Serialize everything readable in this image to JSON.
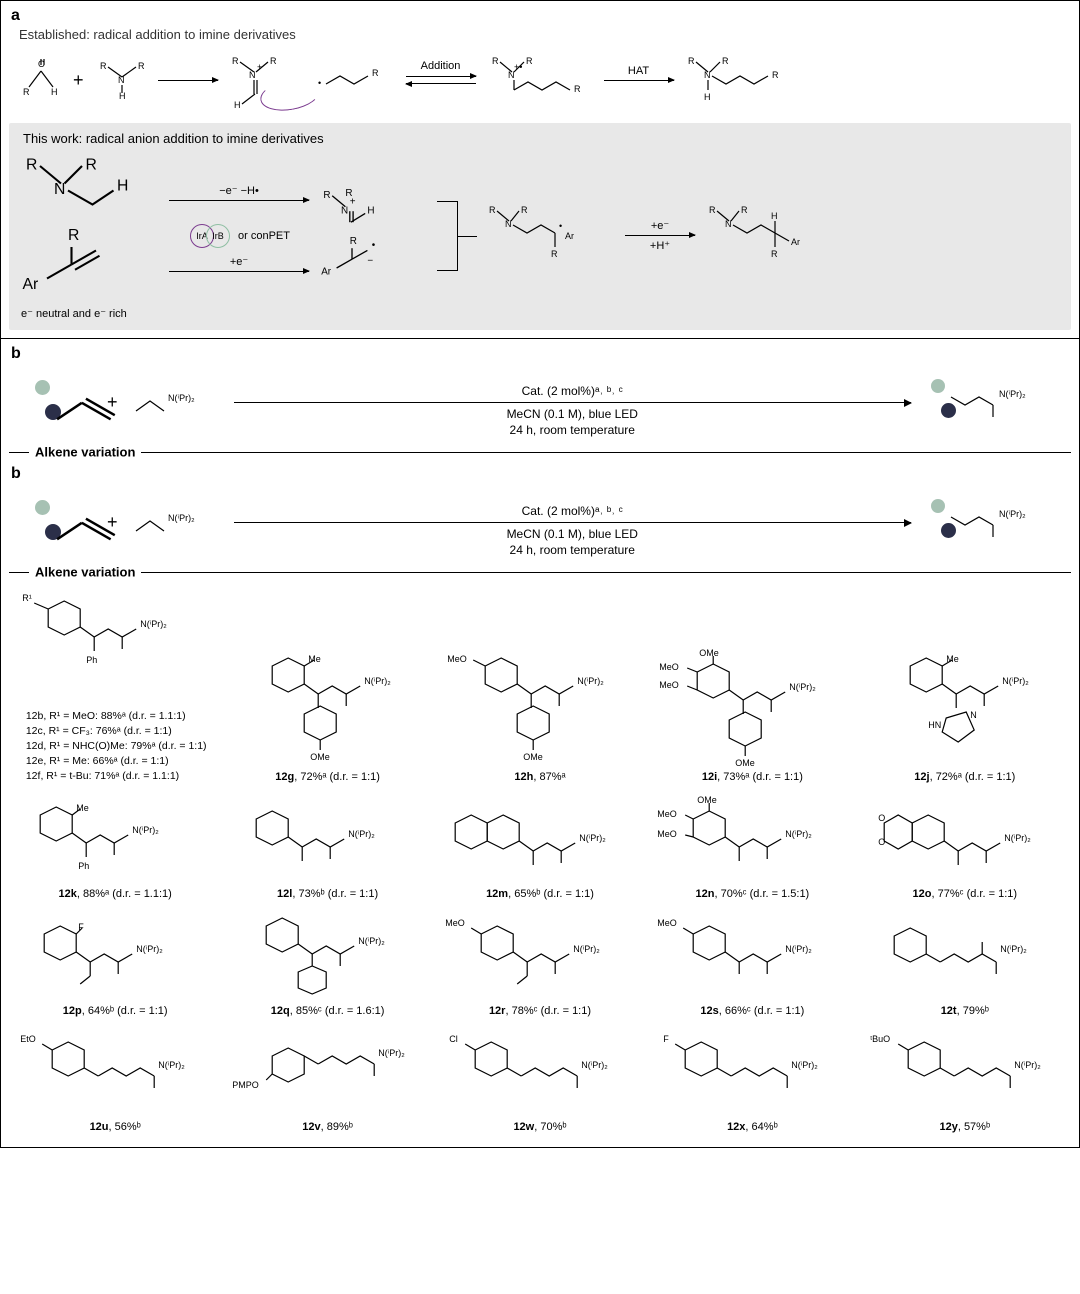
{
  "panelA": {
    "label": "a",
    "established_title": "Established: radical addition to imine derivatives",
    "thiswork_title": "This work: radical anion addition to imine derivatives",
    "addition_label": "Addition",
    "hat_label": "HAT",
    "venn": {
      "left_label": "IrA",
      "right_label": "IrB",
      "left_color": "#7b3b8f",
      "right_color": "#8fbfa3",
      "or_text": "or conPET"
    },
    "top_conditions": "−e⁻   −H•",
    "bot_conditions": "+e⁻",
    "footnote": "e⁻ neutral and e⁻ rich",
    "final_over": "+e⁻",
    "final_under": "+H⁺",
    "mol_labels": {
      "aldehyde": "O",
      "aldehyde_H": "H",
      "amine_R": "R",
      "aminyl_H": "H",
      "iminium_Rplus": "R",
      "radical_R": "R",
      "Ar": "Ar"
    }
  },
  "panelB": {
    "label": "b",
    "cat_line": "Cat. (2 mol%)ᵃ˒ ᵇ˒ ᶜ",
    "cond_line1": "MeCN (0.1 M), blue LED",
    "cond_line2": "24 h, room temperature",
    "amine_label": "N(ⁱPr)₂",
    "dot_colors": {
      "top": "#a6c1b3",
      "bot": "#2b2f49"
    },
    "section_title": "Alkene variation"
  },
  "entries": {
    "col1": {
      "lines": [
        {
          "id": "12b",
          "text": ", R¹ = MeO: 88%ᵃ (d.r. = 1.1:1)"
        },
        {
          "id": "12c",
          "text": ", R¹ = CF₃: 76%ᵃ (d.r. = 1:1)"
        },
        {
          "id": "12d",
          "text": ", R¹ = NHC(O)Me: 79%ᵃ (d.r. = 1:1)"
        },
        {
          "id": "12e",
          "text": ", R¹ = Me: 66%ᵃ (d.r. = 1:1)"
        },
        {
          "id": "12f",
          "text": ", R¹ = t-Bu: 71%ᵃ (d.r. = 1.1:1)"
        }
      ],
      "R1_label": "R¹",
      "Ph_label": "Ph",
      "amine": "N(ⁱPr)₂"
    },
    "row1": [
      {
        "id": "12g",
        "yield": "72%ᵃ",
        "dr": "(d.r. = 1:1)",
        "top_sub": "Me",
        "bot_sub": "OMe"
      },
      {
        "id": "12h",
        "yield": "87%ᵃ",
        "dr": "",
        "top_sub": "MeO",
        "bot_sub": "OMe"
      },
      {
        "id": "12i",
        "yield": "73%ᵃ",
        "dr": "(d.r. = 1:1)",
        "top_sub": "3,4,5-(OMe)₃",
        "bot_sub": "OMe"
      },
      {
        "id": "12j",
        "yield": "72%ᵃ",
        "dr": "(d.r. = 1:1)",
        "top_sub": "Me",
        "bot_sub": "imidazole"
      }
    ],
    "row2": [
      {
        "id": "12k",
        "yield": "88%ᵃ",
        "dr": "(d.r. = 1.1:1)",
        "sub": "o-Me / Ph"
      },
      {
        "id": "12l",
        "yield": "73%ᵇ",
        "dr": "(d.r. = 1:1)",
        "sub": "Ph"
      },
      {
        "id": "12m",
        "yield": "65%ᵇ",
        "dr": "(d.r. = 1:1)",
        "sub": "2-naphthyl"
      },
      {
        "id": "12n",
        "yield": "70%ᶜ",
        "dr": "(d.r. = 1.5:1)",
        "sub": "3,4,5-(OMe)₃"
      },
      {
        "id": "12o",
        "yield": "77%ᶜ",
        "dr": "(d.r. = 1:1)",
        "sub": "benzodioxane"
      }
    ],
    "row3": [
      {
        "id": "12p",
        "yield": "64%ᵇ",
        "dr": "(d.r. = 1:1)",
        "sub": "o-F / Et"
      },
      {
        "id": "12q",
        "yield": "85%ᶜ",
        "dr": "(d.r. = 1.6:1)",
        "sub": "Ph / cyclohexyl"
      },
      {
        "id": "12r",
        "yield": "78%ᶜ",
        "dr": "(d.r. = 1:1)",
        "sub": "p-OMe / Et"
      },
      {
        "id": "12s",
        "yield": "66%ᶜ",
        "dr": "(d.r. = 1:1)",
        "sub": "p-OMe / Me"
      },
      {
        "id": "12t",
        "yield": "79%ᵇ",
        "dr": "",
        "sub": "Ph"
      }
    ],
    "row4": [
      {
        "id": "12u",
        "yield": "56%ᵇ",
        "dr": "",
        "sub": "p-EtO"
      },
      {
        "id": "12v",
        "yield": "89%ᵇ",
        "dr": "",
        "sub": "m-PMPO"
      },
      {
        "id": "12w",
        "yield": "70%ᵇ",
        "dr": "",
        "sub": "p-Cl"
      },
      {
        "id": "12x",
        "yield": "64%ᵇ",
        "dr": "",
        "sub": "p-F"
      },
      {
        "id": "12y",
        "yield": "57%ᵇ",
        "dr": "",
        "sub": "p-OtBu"
      }
    ],
    "common_amine": "N(ⁱPr)₂",
    "sub_text": {
      "MeO": "MeO",
      "OMe": "OMe",
      "Me": "Me",
      "Ph": "Ph",
      "F": "F",
      "Cl": "Cl",
      "EtO": "EtO",
      "PMPO": "PMPO",
      "tBuO": "ᵗBuO",
      "HN": "HN",
      "N": "N",
      "O": "O"
    }
  },
  "colors": {
    "panel_bg": "#ffffff",
    "grey_bg": "#e8e8e8",
    "curve": "#7b3b8f"
  }
}
